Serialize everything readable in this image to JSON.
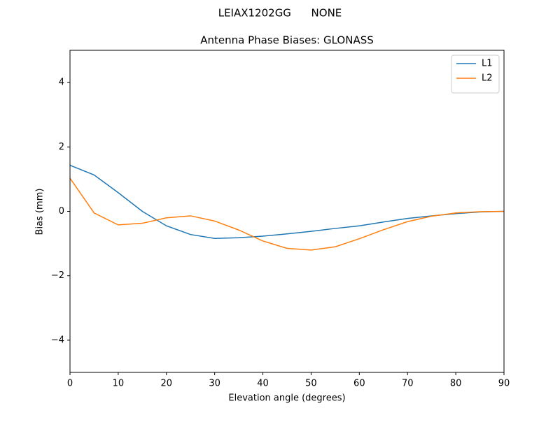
{
  "chart_data": {
    "type": "line",
    "suptitle": "LEIAX1202GG      NONE",
    "title": "Antenna Phase Biases: GLONASS",
    "x_label": "Elevation angle (degrees)",
    "y_label": "Bias (mm)",
    "x": [
      0,
      5,
      10,
      15,
      20,
      25,
      30,
      35,
      40,
      45,
      50,
      55,
      60,
      65,
      70,
      75,
      80,
      85,
      90
    ],
    "series": [
      {
        "name": "L1",
        "color": "#1f77b4",
        "values": [
          1.43,
          1.13,
          0.58,
          0.0,
          -0.45,
          -0.72,
          -0.84,
          -0.82,
          -0.77,
          -0.7,
          -0.62,
          -0.53,
          -0.45,
          -0.33,
          -0.22,
          -0.14,
          -0.07,
          -0.02,
          0.0
        ]
      },
      {
        "name": "L2",
        "color": "#ff7f0e",
        "values": [
          1.03,
          -0.05,
          -0.42,
          -0.37,
          -0.2,
          -0.14,
          -0.3,
          -0.58,
          -0.92,
          -1.15,
          -1.2,
          -1.1,
          -0.85,
          -0.57,
          -0.32,
          -0.15,
          -0.05,
          -0.01,
          0.0
        ]
      }
    ],
    "xlim": [
      0,
      90
    ],
    "xticks": [
      0,
      10,
      20,
      30,
      40,
      50,
      60,
      70,
      80,
      90
    ],
    "ylim": [
      -5,
      5
    ],
    "yticks": [
      {
        "value": -4,
        "label": "−4"
      },
      {
        "value": -2,
        "label": "−2"
      },
      0,
      2,
      4
    ],
    "grid": false,
    "legend": "upper-right"
  }
}
